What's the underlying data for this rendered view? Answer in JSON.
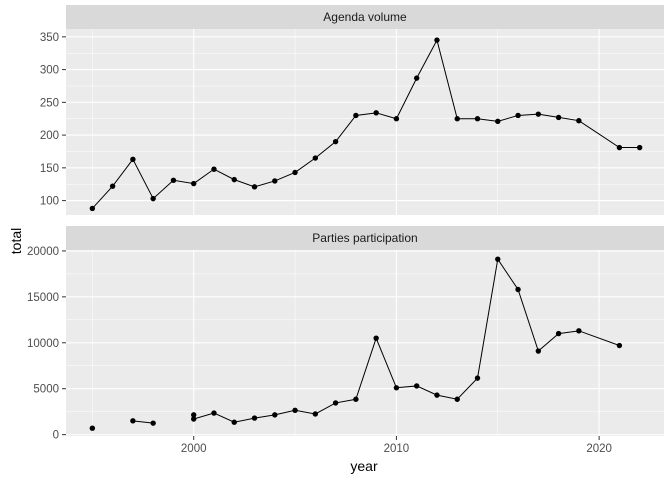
{
  "chart_data": {
    "type": "line",
    "xlabel": "year",
    "ylabel": "total",
    "x_ticks": [
      2000,
      2010,
      2020
    ],
    "x_range": [
      1993.7,
      2023.2
    ],
    "panels": [
      {
        "strip": "Agenda volume",
        "ylim": [
          78,
          362
        ],
        "y_ticks": [
          100,
          150,
          200,
          250,
          300,
          350
        ],
        "segments": [
          [
            [
              1995,
              88
            ],
            [
              1996,
              122
            ],
            [
              1997,
              163
            ],
            [
              1998,
              103
            ],
            [
              1999,
              131
            ],
            [
              2000,
              126
            ],
            [
              2001,
              148
            ],
            [
              2002,
              132
            ],
            [
              2003,
              121
            ],
            [
              2004,
              130
            ],
            [
              2005,
              143
            ],
            [
              2006,
              165
            ],
            [
              2007,
              190
            ],
            [
              2008,
              230
            ],
            [
              2009,
              234
            ],
            [
              2010,
              225
            ],
            [
              2011,
              287
            ],
            [
              2012,
              345
            ],
            [
              2013,
              225
            ],
            [
              2014,
              225
            ],
            [
              2015,
              221
            ],
            [
              2016,
              230
            ],
            [
              2017,
              232
            ],
            [
              2018,
              227
            ],
            [
              2019,
              222
            ],
            [
              2021,
              181
            ],
            [
              2022,
              181
            ]
          ]
        ]
      },
      {
        "strip": "Parties participation",
        "ylim": [
          -150,
          20100
        ],
        "y_ticks": [
          0,
          5000,
          10000,
          15000,
          20000
        ],
        "segments": [
          [
            [
              1995,
              700
            ]
          ],
          [
            [
              1997,
              1500
            ],
            [
              1998,
              1250
            ]
          ],
          [
            [
              2000,
              1700
            ],
            [
              2001,
              2350
            ],
            [
              2002,
              1350
            ],
            [
              2003,
              1800
            ],
            [
              2004,
              2150
            ],
            [
              2005,
              2650
            ],
            [
              2006,
              2250
            ],
            [
              2007,
              3450
            ],
            [
              2008,
              3850
            ],
            [
              2009,
              10500
            ],
            [
              2010,
              5100
            ],
            [
              2011,
              5300
            ],
            [
              2012,
              4300
            ],
            [
              2013,
              3850
            ],
            [
              2014,
              6150
            ],
            [
              2015,
              19100
            ],
            [
              2016,
              15800
            ],
            [
              2017,
              9100
            ],
            [
              2018,
              11000
            ],
            [
              2019,
              11300
            ],
            [
              2021,
              9700
            ]
          ]
        ],
        "extra_points": [
          [
            2000,
            2150
          ]
        ]
      }
    ]
  }
}
